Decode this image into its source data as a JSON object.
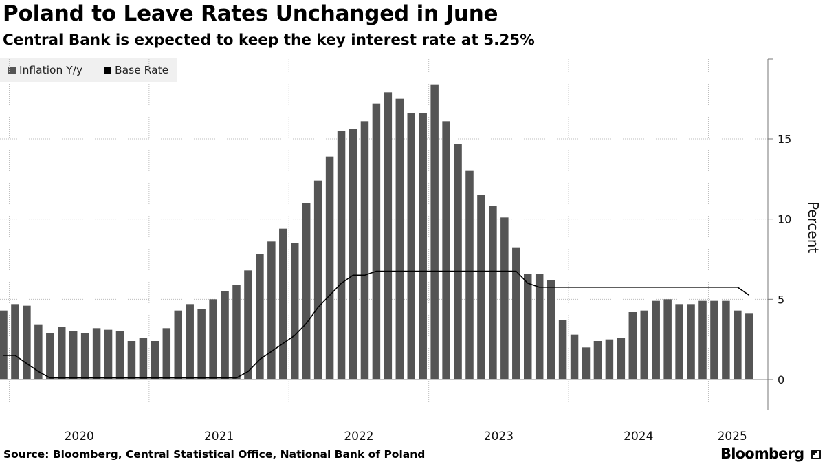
{
  "header": {
    "title": "Poland to Leave Rates Unchanged in June",
    "subtitle": "Central Bank is expected to keep the key interest rate at 5.25%"
  },
  "footer": {
    "source": "Source: Bloomberg, Central Statistical Office, National Bank of Poland",
    "brand": "Bloomberg"
  },
  "colors": {
    "bars": "#555555",
    "line": "#000000",
    "grid": "#bdbdbd",
    "legend_bg": "#f0f0f0"
  },
  "chart_data": {
    "type": "bar",
    "title": "Poland to Leave Rates Unchanged in June",
    "subtitle": "Central Bank is expected to keep the key interest rate at 5.25%",
    "xlabel": "",
    "ylabel": "Percent",
    "ylim": [
      -1.8,
      20
    ],
    "yticks": [
      0,
      5,
      10,
      15
    ],
    "y_axis_side": "right",
    "x_tick_labels": [
      "2020",
      "2021",
      "2022",
      "2023",
      "2024",
      "2025"
    ],
    "legend": {
      "placement": "top-left",
      "entries": [
        "Inflation Y/y",
        "Base Rate"
      ]
    },
    "grid": true,
    "categories": [
      "2019-12",
      "2020-01",
      "2020-02",
      "2020-03",
      "2020-04",
      "2020-05",
      "2020-06",
      "2020-07",
      "2020-08",
      "2020-09",
      "2020-10",
      "2020-11",
      "2020-12",
      "2021-01",
      "2021-02",
      "2021-03",
      "2021-04",
      "2021-05",
      "2021-06",
      "2021-07",
      "2021-08",
      "2021-09",
      "2021-10",
      "2021-11",
      "2021-12",
      "2022-01",
      "2022-02",
      "2022-03",
      "2022-04",
      "2022-05",
      "2022-06",
      "2022-07",
      "2022-08",
      "2022-09",
      "2022-10",
      "2022-11",
      "2022-12",
      "2023-01",
      "2023-02",
      "2023-03",
      "2023-04",
      "2023-05",
      "2023-06",
      "2023-07",
      "2023-08",
      "2023-09",
      "2023-10",
      "2023-11",
      "2023-12",
      "2024-01",
      "2024-02",
      "2024-03",
      "2024-04",
      "2024-05",
      "2024-06",
      "2024-07",
      "2024-08",
      "2024-09",
      "2024-10",
      "2024-11",
      "2024-12",
      "2025-01",
      "2025-02",
      "2025-03",
      "2025-04"
    ],
    "series": [
      {
        "name": "Inflation Y/y",
        "type": "bar",
        "values": [
          4.3,
          4.7,
          4.6,
          3.4,
          2.9,
          3.3,
          3.0,
          2.9,
          3.2,
          3.1,
          3.0,
          2.4,
          2.6,
          2.4,
          3.2,
          4.3,
          4.7,
          4.4,
          5.0,
          5.5,
          5.9,
          6.8,
          7.8,
          8.6,
          9.4,
          8.5,
          11.0,
          12.4,
          13.9,
          15.5,
          15.6,
          16.1,
          17.2,
          17.9,
          17.5,
          16.6,
          16.6,
          18.4,
          16.1,
          14.7,
          13.0,
          11.5,
          10.8,
          10.1,
          8.2,
          6.6,
          6.6,
          6.2,
          3.7,
          2.8,
          2.0,
          2.4,
          2.5,
          2.6,
          4.2,
          4.3,
          4.9,
          5.0,
          4.7,
          4.7,
          4.9,
          4.9,
          4.9,
          4.3,
          4.1
        ]
      },
      {
        "name": "Base Rate",
        "type": "step-line",
        "values": [
          1.5,
          1.5,
          1.0,
          0.5,
          0.1,
          0.1,
          0.1,
          0.1,
          0.1,
          0.1,
          0.1,
          0.1,
          0.1,
          0.1,
          0.1,
          0.1,
          0.1,
          0.1,
          0.1,
          0.1,
          0.1,
          0.5,
          1.25,
          1.75,
          2.25,
          2.75,
          3.5,
          4.5,
          5.25,
          6.0,
          6.5,
          6.5,
          6.75,
          6.75,
          6.75,
          6.75,
          6.75,
          6.75,
          6.75,
          6.75,
          6.75,
          6.75,
          6.75,
          6.75,
          6.75,
          6.0,
          5.75,
          5.75,
          5.75,
          5.75,
          5.75,
          5.75,
          5.75,
          5.75,
          5.75,
          5.75,
          5.75,
          5.75,
          5.75,
          5.75,
          5.75,
          5.75,
          5.75,
          5.75,
          5.25
        ]
      }
    ]
  }
}
